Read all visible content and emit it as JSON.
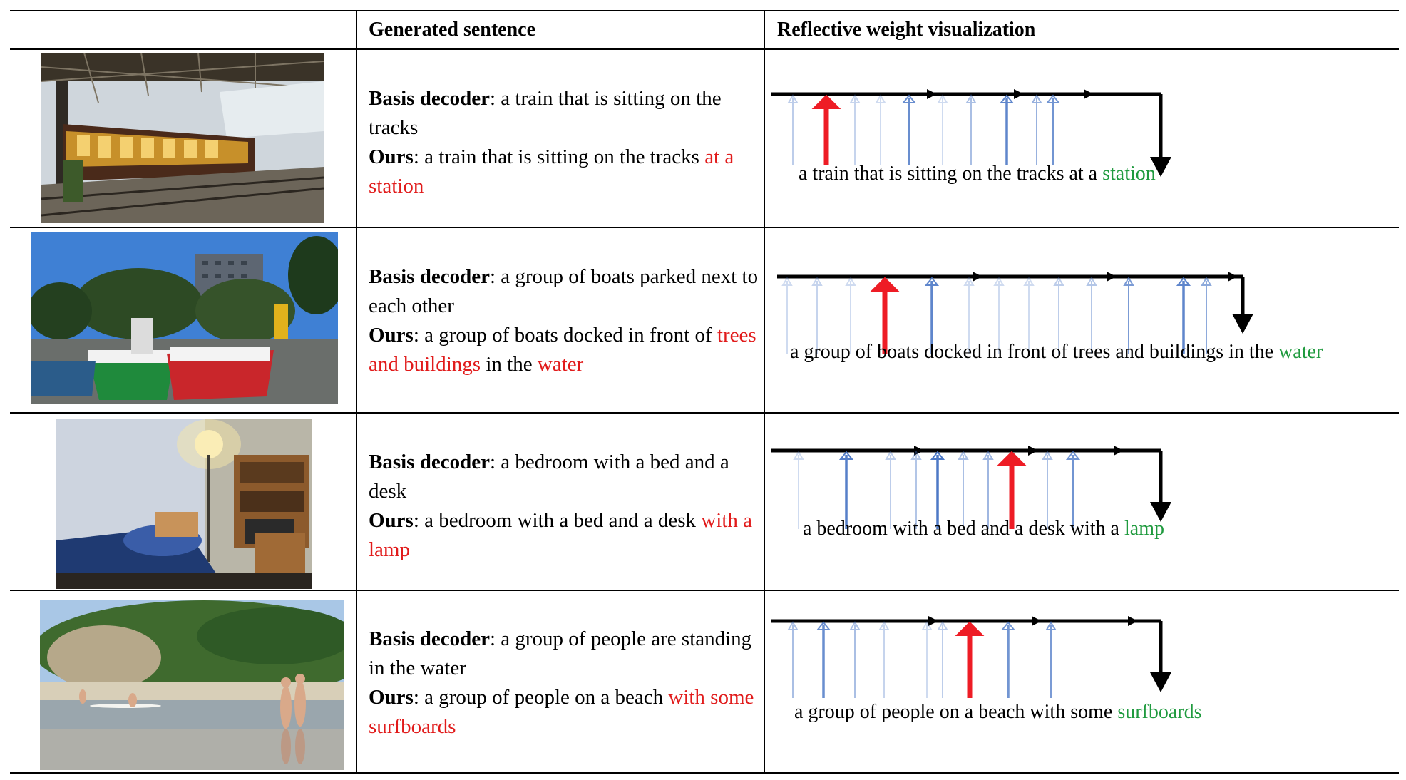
{
  "header": {
    "col1": "",
    "col2": "Generated sentence",
    "col3": "Reflective weight visualization"
  },
  "rows": [
    {
      "photo": "photo-train-station",
      "basis_label": "Basis decoder",
      "basis_text": ": a train that is sitting on the tracks",
      "ours_label": "Ours",
      "ours_text": ": a train that is sitting on the tracks ",
      "ours_highlight": "at a station",
      "ours_tail": "",
      "ours_highlight2": "",
      "caption_main": "a train that is sitting on the tracks at a ",
      "caption_last": "station"
    },
    {
      "photo": "photo-boats-harbor",
      "basis_label": "Basis decoder",
      "basis_text": ": a group of boats parked next to each other",
      "ours_label": "Ours",
      "ours_text": ": a group of boats docked in front of ",
      "ours_highlight": "trees and buildings",
      "ours_tail": " in the ",
      "ours_highlight2": "water",
      "caption_main": "a group of  boats docked in front of trees and buildings in the ",
      "caption_last": "water"
    },
    {
      "photo": "photo-bedroom",
      "basis_label": "Basis decoder",
      "basis_text": ": a bedroom with a bed and a desk",
      "ours_label": "Ours",
      "ours_text": ":  a bedroom with a bed and a desk ",
      "ours_highlight": "with a lamp",
      "ours_tail": "",
      "ours_highlight2": "",
      "caption_main": "a bedroom with a bed and a desk with a ",
      "caption_last": "lamp"
    },
    {
      "photo": "photo-beach",
      "basis_label": "Basis decoder",
      "basis_text": ": a group of people are standing in the water",
      "ours_label": "Ours",
      "ours_text": ": a group of people on a beach ",
      "ours_highlight": "with some surfboards",
      "ours_tail": "",
      "ours_highlight2": "",
      "caption_main": "a group of people on a beach with some ",
      "caption_last": "surfboards"
    }
  ],
  "colors": {
    "highlight_red": "#e11b1b",
    "caption_green": "#1f9a3e",
    "arrow_blue": "#4472c4",
    "arrow_red": "#ee1c25"
  },
  "weights": [
    [
      0.35,
      1.0,
      0.3,
      0.25,
      0.8,
      0.2,
      0.45,
      0.85,
      0.55,
      0.75
    ],
    [
      0.2,
      0.3,
      0.25,
      0.9,
      0.85,
      0.15,
      0.2,
      0.25,
      0.35,
      0.4,
      0.7,
      0.85,
      0.6
    ],
    [
      0.25,
      0.9,
      0.35,
      0.4,
      0.95,
      0.45,
      0.5,
      1.0,
      0.45,
      0.75
    ],
    [
      0.45,
      0.8,
      0.45,
      0.3,
      0.25,
      0.35,
      1.0,
      0.75,
      0.7
    ]
  ],
  "red_index": [
    1,
    3,
    7,
    6
  ]
}
